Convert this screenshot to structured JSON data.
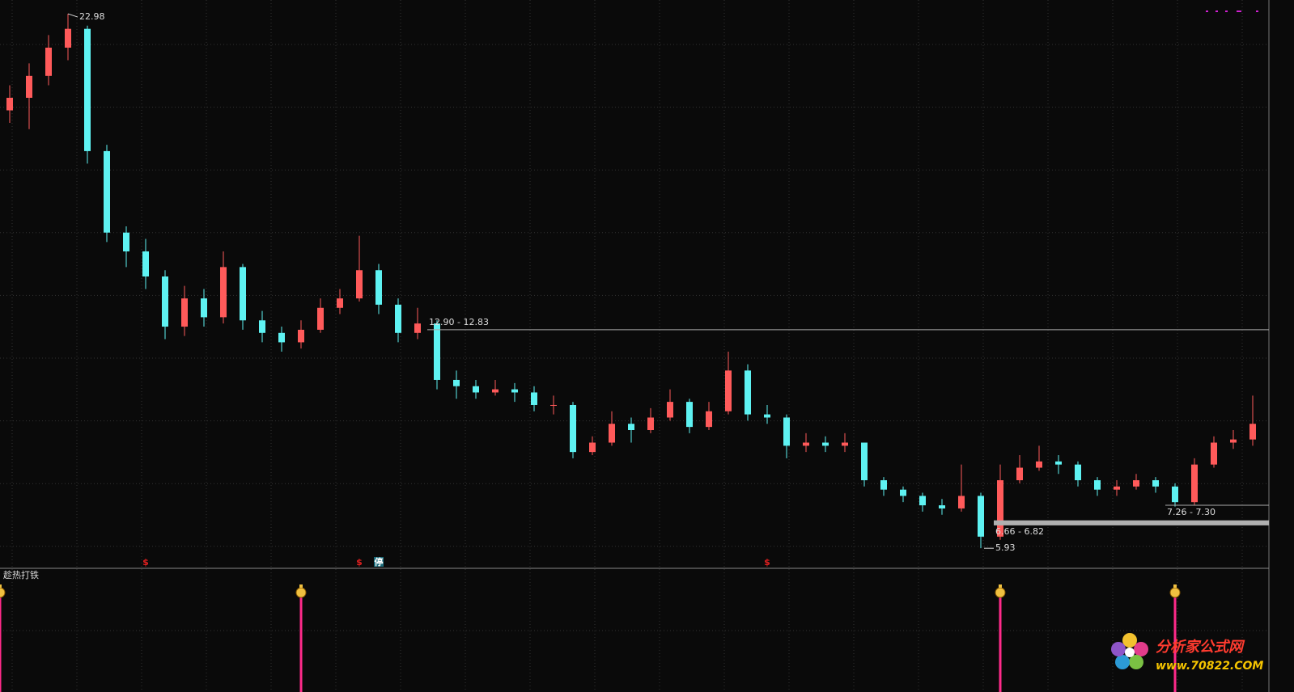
{
  "chart_data": [
    {
      "type": "candlestick",
      "ylim": [
        5.29,
        23.42
      ],
      "up_color": "#ff5a5a",
      "down_color": "#5ef2f2",
      "open": [
        19.9,
        20.3,
        21.0,
        21.9,
        22.5,
        18.6,
        16.0,
        15.4,
        14.6,
        13.0,
        13.9,
        13.3,
        14.9,
        13.2,
        12.8,
        12.5,
        12.9,
        13.6,
        13.9,
        14.8,
        13.7,
        12.8,
        13.1,
        11.3,
        11.1,
        10.9,
        11.0,
        10.9,
        10.5,
        10.5,
        9.0,
        9.3,
        9.9,
        9.7,
        10.1,
        10.6,
        9.8,
        10.3,
        11.6,
        10.2,
        10.1,
        9.2,
        9.3,
        9.2,
        9.3,
        8.1,
        7.8,
        7.6,
        7.3,
        7.2,
        7.6,
        6.3,
        8.1,
        8.5,
        8.7,
        8.6,
        8.1,
        7.8,
        7.9,
        8.1,
        7.9,
        7.4,
        8.6,
        9.3,
        9.4
      ],
      "close": [
        20.3,
        21.0,
        21.9,
        22.5,
        18.6,
        16.0,
        15.4,
        14.6,
        13.0,
        13.9,
        13.3,
        14.9,
        13.2,
        12.8,
        12.5,
        12.9,
        13.6,
        13.9,
        14.8,
        13.7,
        12.8,
        13.1,
        11.3,
        11.1,
        10.9,
        11.0,
        10.9,
        10.5,
        10.5,
        9.0,
        9.3,
        9.9,
        9.7,
        10.1,
        10.6,
        9.8,
        10.3,
        11.6,
        10.2,
        10.1,
        9.2,
        9.3,
        9.2,
        9.3,
        8.1,
        7.8,
        7.6,
        7.3,
        7.2,
        7.6,
        6.3,
        8.1,
        8.5,
        8.7,
        8.6,
        8.1,
        7.8,
        7.9,
        8.1,
        7.9,
        7.4,
        8.6,
        9.3,
        9.4,
        9.9
      ],
      "high": [
        20.7,
        21.4,
        22.3,
        22.98,
        22.6,
        18.8,
        16.2,
        15.8,
        14.8,
        14.3,
        14.2,
        15.4,
        15.0,
        13.5,
        13.0,
        13.2,
        13.9,
        14.2,
        15.9,
        15.0,
        13.9,
        13.6,
        13.2,
        11.6,
        11.3,
        11.3,
        11.2,
        11.1,
        10.8,
        10.6,
        9.5,
        10.3,
        10.1,
        10.4,
        11.0,
        10.7,
        10.6,
        12.2,
        11.8,
        10.5,
        10.2,
        9.6,
        9.5,
        9.6,
        9.3,
        8.2,
        7.9,
        7.7,
        7.5,
        8.6,
        7.7,
        8.6,
        8.9,
        9.2,
        8.9,
        8.7,
        8.2,
        8.1,
        8.3,
        8.2,
        8.0,
        8.8,
        9.5,
        9.7,
        10.8
      ],
      "low": [
        19.5,
        19.3,
        20.7,
        21.5,
        18.2,
        15.7,
        14.9,
        14.2,
        12.6,
        12.7,
        13.0,
        13.1,
        12.9,
        12.5,
        12.2,
        12.3,
        12.8,
        13.4,
        13.8,
        13.4,
        12.5,
        12.6,
        11.0,
        10.7,
        10.7,
        10.8,
        10.6,
        10.3,
        10.2,
        8.8,
        8.9,
        9.2,
        9.3,
        9.6,
        10.0,
        9.6,
        9.7,
        10.2,
        10.0,
        9.9,
        8.8,
        9.0,
        9.0,
        9.0,
        7.9,
        7.6,
        7.4,
        7.1,
        7.0,
        7.1,
        5.93,
        6.2,
        8.0,
        8.4,
        8.3,
        7.9,
        7.6,
        7.6,
        7.8,
        7.7,
        7.26,
        7.3,
        8.5,
        9.1,
        9.2
      ],
      "level_lines": [
        {
          "label": "12.90 - 12.83",
          "value": 12.9
        },
        {
          "label": "6.66 - 6.82",
          "value": 6.66,
          "value2": 6.82
        },
        {
          "label": "7.26 - 7.30",
          "value": 7.3
        }
      ],
      "markers": [
        {
          "text": "$",
          "index": 7
        },
        {
          "text": "$",
          "index": 18
        },
        {
          "text": "停",
          "index": 19
        },
        {
          "text": "$",
          "index": 39
        }
      ]
    },
    {
      "type": "signal",
      "title": "趁热打铁",
      "color": "#ff2a8a",
      "signals": [
        0,
        15,
        51,
        60
      ]
    }
  ],
  "watermark": {
    "name": "分析家公式网",
    "url": "www.70822.COM"
  }
}
